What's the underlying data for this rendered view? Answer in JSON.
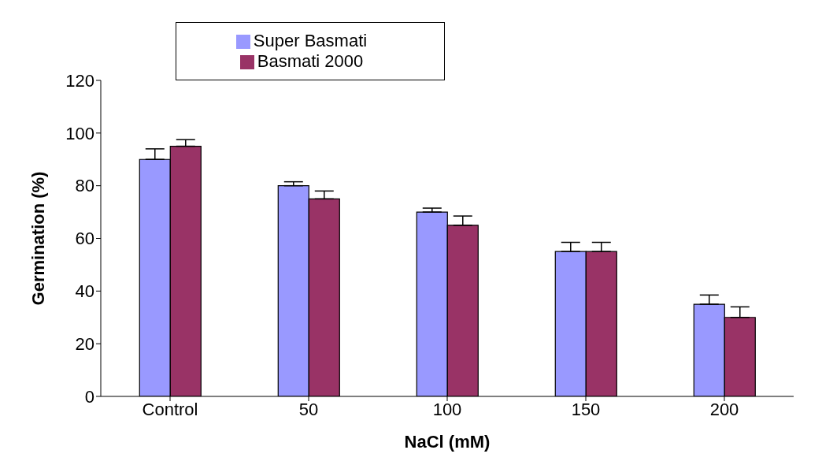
{
  "chart_data": {
    "type": "bar",
    "xlabel": "NaCl (mM)",
    "ylabel": "Germination (%)",
    "categories": [
      "Control",
      "50",
      "100",
      "150",
      "200"
    ],
    "series": [
      {
        "name": "Super Basmati",
        "color": "#9999ff",
        "values": [
          90,
          80,
          70,
          55,
          35
        ],
        "errors": [
          [
            90,
            94
          ],
          [
            80,
            81.5
          ],
          [
            70,
            71.5
          ],
          [
            55,
            58.5
          ],
          [
            35,
            38.5
          ]
        ]
      },
      {
        "name": "Basmati 2000",
        "color": "#993366",
        "values": [
          95,
          75,
          65,
          55,
          30
        ],
        "errors": [
          [
            95,
            97.5
          ],
          [
            75,
            78
          ],
          [
            65,
            68.5
          ],
          [
            55,
            58.5
          ],
          [
            30,
            34
          ]
        ]
      }
    ],
    "ylim": [
      0,
      120
    ],
    "yticks": [
      0,
      20,
      40,
      60,
      80,
      100,
      120
    ],
    "grid": false,
    "legend": "top"
  }
}
